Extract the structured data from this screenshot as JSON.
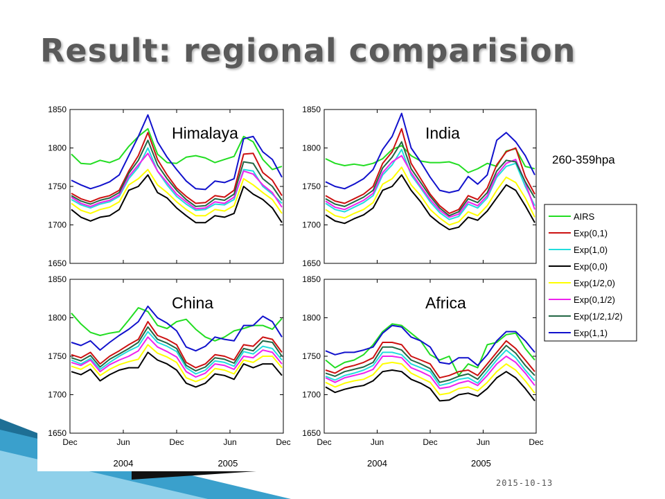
{
  "slide": {
    "title": "Result: regional comparision",
    "date": "2015-10-13",
    "pressure_label": "260-359hpa"
  },
  "colors": {
    "AIRS": "#22dd22",
    "Exp(0,1)": "#cc1111",
    "Exp(1,0)": "#22dddd",
    "Exp(0,0)": "#000000",
    "Exp(1/2,0)": "#ffff00",
    "Exp(0,1/2)": "#ee22ee",
    "Exp(1/2,1/2)": "#226644",
    "Exp(1,1)": "#1111cc"
  },
  "chart_data": [
    {
      "type": "line",
      "title": "Himalaya",
      "x_ticks": [
        "Dec",
        "Jun",
        "Dec",
        "Jun",
        "Dec"
      ],
      "year_labels": [
        "2004",
        "2005"
      ],
      "ylim": [
        1650,
        1850
      ],
      "y_ticks": [
        1650,
        1700,
        1750,
        1800,
        1850
      ],
      "series": [
        {
          "name": "AIRS",
          "values": [
            1792,
            1780,
            1779,
            1784,
            1781,
            1786,
            1802,
            1815,
            1825,
            1792,
            1781,
            1780,
            1788,
            1790,
            1787,
            1781,
            1785,
            1789,
            1815,
            1808,
            1785,
            1772,
            1776
          ]
        },
        {
          "name": "Exp(0,1)",
          "values": [
            1741,
            1734,
            1730,
            1735,
            1738,
            1745,
            1770,
            1790,
            1820,
            1785,
            1765,
            1748,
            1737,
            1728,
            1729,
            1738,
            1736,
            1745,
            1792,
            1793,
            1768,
            1758,
            1738
          ]
        },
        {
          "name": "Exp(1,0)",
          "values": [
            1733,
            1726,
            1722,
            1727,
            1730,
            1737,
            1760,
            1775,
            1800,
            1770,
            1752,
            1737,
            1727,
            1719,
            1720,
            1727,
            1726,
            1733,
            1772,
            1770,
            1750,
            1740,
            1728
          ]
        },
        {
          "name": "Exp(0,0)",
          "values": [
            1720,
            1710,
            1705,
            1710,
            1712,
            1720,
            1745,
            1750,
            1765,
            1742,
            1735,
            1722,
            1712,
            1703,
            1703,
            1712,
            1710,
            1715,
            1750,
            1740,
            1733,
            1722,
            1703
          ]
        },
        {
          "name": "Exp(1/2,0)",
          "values": [
            1728,
            1719,
            1715,
            1720,
            1723,
            1730,
            1752,
            1760,
            1772,
            1752,
            1742,
            1730,
            1720,
            1712,
            1712,
            1720,
            1718,
            1725,
            1760,
            1752,
            1742,
            1733,
            1715
          ]
        },
        {
          "name": "Exp(0,1/2)",
          "values": [
            1736,
            1728,
            1724,
            1729,
            1732,
            1739,
            1763,
            1778,
            1793,
            1770,
            1755,
            1740,
            1730,
            1721,
            1722,
            1730,
            1728,
            1736,
            1770,
            1766,
            1752,
            1742,
            1723
          ]
        },
        {
          "name": "Exp(1/2,1/2)",
          "values": [
            1738,
            1731,
            1727,
            1732,
            1735,
            1742,
            1767,
            1784,
            1810,
            1778,
            1760,
            1745,
            1733,
            1724,
            1725,
            1734,
            1732,
            1740,
            1782,
            1780,
            1760,
            1750,
            1732
          ]
        },
        {
          "name": "Exp(1,1)",
          "values": [
            1758,
            1752,
            1747,
            1751,
            1756,
            1765,
            1790,
            1815,
            1843,
            1808,
            1788,
            1772,
            1757,
            1747,
            1746,
            1757,
            1755,
            1760,
            1812,
            1815,
            1795,
            1785,
            1762
          ]
        }
      ]
    },
    {
      "type": "line",
      "title": "India",
      "x_ticks": [
        "Dec",
        "Jun",
        "Dec",
        "Jun",
        "Dec"
      ],
      "year_labels": [
        "2004",
        "2005"
      ],
      "ylim": [
        1650,
        1850
      ],
      "y_ticks": [
        1650,
        1700,
        1750,
        1800,
        1850
      ],
      "series": [
        {
          "name": "AIRS",
          "values": [
            1786,
            1780,
            1777,
            1779,
            1777,
            1780,
            1786,
            1798,
            1803,
            1790,
            1783,
            1781,
            1781,
            1782,
            1778,
            1768,
            1773,
            1780,
            1776,
            1796,
            1799,
            1776,
            1773
          ]
        },
        {
          "name": "Exp(0,1)",
          "values": [
            1738,
            1731,
            1728,
            1734,
            1740,
            1750,
            1780,
            1795,
            1825,
            1780,
            1760,
            1740,
            1725,
            1715,
            1720,
            1738,
            1733,
            1748,
            1778,
            1795,
            1800,
            1763,
            1740
          ]
        },
        {
          "name": "Exp(1,0)",
          "values": [
            1728,
            1720,
            1717,
            1723,
            1729,
            1738,
            1765,
            1778,
            1798,
            1765,
            1748,
            1730,
            1716,
            1707,
            1711,
            1727,
            1722,
            1735,
            1762,
            1776,
            1780,
            1750,
            1725
          ]
        },
        {
          "name": "Exp(0,0)",
          "values": [
            1713,
            1705,
            1702,
            1708,
            1713,
            1722,
            1745,
            1750,
            1765,
            1745,
            1730,
            1712,
            1702,
            1694,
            1697,
            1710,
            1706,
            1718,
            1735,
            1752,
            1745,
            1725,
            1703
          ]
        },
        {
          "name": "Exp(1/2,0)",
          "values": [
            1720,
            1712,
            1709,
            1715,
            1720,
            1729,
            1753,
            1760,
            1775,
            1752,
            1738,
            1720,
            1709,
            1700,
            1704,
            1717,
            1712,
            1725,
            1745,
            1762,
            1755,
            1735,
            1710
          ]
        },
        {
          "name": "Exp(0,1/2)",
          "values": [
            1731,
            1723,
            1720,
            1726,
            1732,
            1741,
            1768,
            1782,
            1790,
            1768,
            1750,
            1733,
            1719,
            1710,
            1714,
            1730,
            1725,
            1738,
            1765,
            1780,
            1785,
            1755,
            1720
          ]
        },
        {
          "name": "Exp(1/2,1/2)",
          "values": [
            1734,
            1727,
            1724,
            1730,
            1736,
            1745,
            1774,
            1788,
            1808,
            1773,
            1755,
            1737,
            1722,
            1712,
            1717,
            1734,
            1729,
            1742,
            1770,
            1784,
            1782,
            1756,
            1735
          ]
        },
        {
          "name": "Exp(1,1)",
          "values": [
            1756,
            1750,
            1747,
            1753,
            1760,
            1772,
            1798,
            1815,
            1845,
            1800,
            1782,
            1762,
            1745,
            1742,
            1745,
            1763,
            1753,
            1765,
            1810,
            1820,
            1808,
            1790,
            1765
          ]
        }
      ]
    },
    {
      "type": "line",
      "title": "China",
      "x_ticks": [
        "Dec",
        "Jun",
        "Dec",
        "Jun",
        "Dec"
      ],
      "year_labels": [
        "2004",
        "2005"
      ],
      "ylim": [
        1650,
        1850
      ],
      "y_ticks": [
        1650,
        1700,
        1750,
        1800,
        1850
      ],
      "series": [
        {
          "name": "AIRS",
          "values": [
            1806,
            1792,
            1781,
            1777,
            1780,
            1782,
            1797,
            1813,
            1808,
            1790,
            1786,
            1795,
            1798,
            1785,
            1775,
            1770,
            1775,
            1783,
            1786,
            1790,
            1790,
            1785,
            1799
          ]
        },
        {
          "name": "Exp(0,1)",
          "values": [
            1752,
            1748,
            1755,
            1740,
            1750,
            1757,
            1765,
            1772,
            1795,
            1777,
            1772,
            1765,
            1742,
            1735,
            1740,
            1752,
            1750,
            1745,
            1765,
            1763,
            1775,
            1772,
            1755
          ]
        },
        {
          "name": "Exp(1,0)",
          "values": [
            1745,
            1740,
            1747,
            1733,
            1742,
            1750,
            1757,
            1763,
            1782,
            1768,
            1763,
            1756,
            1735,
            1727,
            1732,
            1744,
            1742,
            1737,
            1756,
            1753,
            1763,
            1760,
            1745
          ]
        },
        {
          "name": "Exp(0,0)",
          "values": [
            1730,
            1726,
            1733,
            1718,
            1726,
            1732,
            1735,
            1735,
            1755,
            1745,
            1740,
            1732,
            1715,
            1710,
            1715,
            1727,
            1725,
            1720,
            1740,
            1735,
            1740,
            1740,
            1725
          ]
        },
        {
          "name": "Exp(1/2,0)",
          "values": [
            1737,
            1733,
            1740,
            1725,
            1733,
            1739,
            1743,
            1746,
            1765,
            1754,
            1749,
            1742,
            1722,
            1717,
            1722,
            1734,
            1732,
            1727,
            1745,
            1742,
            1750,
            1750,
            1735
          ]
        },
        {
          "name": "Exp(0,1/2)",
          "values": [
            1742,
            1738,
            1745,
            1730,
            1739,
            1745,
            1750,
            1757,
            1775,
            1762,
            1756,
            1749,
            1730,
            1723,
            1728,
            1740,
            1738,
            1733,
            1750,
            1748,
            1758,
            1755,
            1740
          ]
        },
        {
          "name": "Exp(1/2,1/2)",
          "values": [
            1748,
            1744,
            1751,
            1736,
            1746,
            1753,
            1760,
            1768,
            1788,
            1772,
            1767,
            1760,
            1738,
            1731,
            1736,
            1748,
            1746,
            1741,
            1760,
            1757,
            1770,
            1768,
            1750
          ]
        },
        {
          "name": "Exp(1,1)",
          "values": [
            1768,
            1764,
            1770,
            1758,
            1768,
            1777,
            1785,
            1795,
            1815,
            1800,
            1793,
            1783,
            1762,
            1757,
            1763,
            1775,
            1772,
            1770,
            1790,
            1790,
            1802,
            1795,
            1775
          ]
        }
      ]
    },
    {
      "type": "line",
      "title": "Africa",
      "x_ticks": [
        "Dec",
        "Jun",
        "Dec",
        "Jun",
        "Dec"
      ],
      "year_labels": [
        "2004",
        "2005"
      ],
      "ylim": [
        1650,
        1850
      ],
      "y_ticks": [
        1650,
        1700,
        1750,
        1800,
        1850
      ],
      "series": [
        {
          "name": "AIRS",
          "values": [
            1745,
            1735,
            1742,
            1745,
            1752,
            1765,
            1782,
            1792,
            1790,
            1780,
            1770,
            1752,
            1745,
            1750,
            1725,
            1740,
            1735,
            1765,
            1768,
            1778,
            1780,
            1760,
            1745
          ]
        },
        {
          "name": "Exp(0,1)",
          "values": [
            1732,
            1728,
            1735,
            1738,
            1742,
            1748,
            1768,
            1768,
            1765,
            1750,
            1745,
            1740,
            1722,
            1725,
            1730,
            1732,
            1725,
            1740,
            1755,
            1770,
            1760,
            1745,
            1730
          ]
        },
        {
          "name": "Exp(1,0)",
          "values": [
            1724,
            1719,
            1725,
            1728,
            1732,
            1738,
            1755,
            1755,
            1752,
            1740,
            1735,
            1730,
            1712,
            1715,
            1720,
            1722,
            1715,
            1730,
            1745,
            1758,
            1748,
            1732,
            1718
          ]
        },
        {
          "name": "Exp(0,0)",
          "values": [
            1710,
            1703,
            1707,
            1710,
            1712,
            1718,
            1730,
            1732,
            1730,
            1720,
            1715,
            1708,
            1692,
            1693,
            1700,
            1702,
            1698,
            1708,
            1722,
            1730,
            1722,
            1708,
            1692
          ]
        },
        {
          "name": "Exp(1/2,0)",
          "values": [
            1716,
            1710,
            1715,
            1718,
            1720,
            1726,
            1740,
            1742,
            1740,
            1728,
            1722,
            1716,
            1700,
            1702,
            1708,
            1710,
            1705,
            1716,
            1730,
            1740,
            1732,
            1718,
            1702
          ]
        },
        {
          "name": "Exp(0,1/2)",
          "values": [
            1722,
            1716,
            1722,
            1725,
            1728,
            1733,
            1750,
            1750,
            1748,
            1735,
            1730,
            1724,
            1708,
            1710,
            1715,
            1718,
            1712,
            1725,
            1740,
            1750,
            1742,
            1728,
            1712
          ]
        },
        {
          "name": "Exp(1/2,1/2)",
          "values": [
            1728,
            1724,
            1730,
            1733,
            1736,
            1742,
            1762,
            1762,
            1758,
            1745,
            1740,
            1734,
            1716,
            1719,
            1724,
            1727,
            1720,
            1735,
            1750,
            1764,
            1754,
            1738,
            1725
          ]
        },
        {
          "name": "Exp(1,1)",
          "values": [
            1757,
            1752,
            1755,
            1755,
            1758,
            1762,
            1780,
            1790,
            1788,
            1775,
            1770,
            1762,
            1742,
            1740,
            1748,
            1748,
            1738,
            1752,
            1770,
            1782,
            1782,
            1770,
            1755
          ]
        }
      ]
    }
  ]
}
